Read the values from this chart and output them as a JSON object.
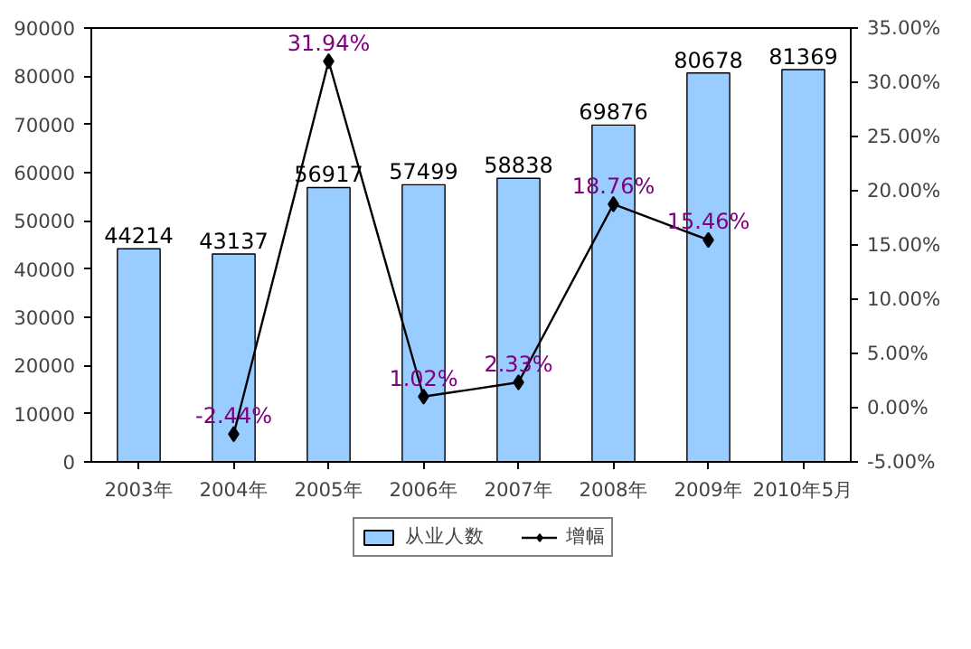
{
  "chart_data": {
    "type": "bar",
    "categories": [
      "2003年",
      "2004年",
      "2005年",
      "2006年",
      "2007年",
      "2008年",
      "2009年",
      "2010年5月"
    ],
    "series": [
      {
        "name": "从业人数",
        "color": "#99ccff",
        "values": [
          44214,
          43137,
          56917,
          57499,
          58838,
          69876,
          80678,
          81369
        ],
        "value_labels": [
          "44214",
          "43137",
          "56917",
          "57499",
          "58838",
          "69876",
          "80678",
          "81369"
        ]
      },
      {
        "name": "增幅",
        "type": "line",
        "axis": "y2",
        "color": "#000000",
        "marker": "diamond",
        "values": [
          null,
          -2.44,
          31.94,
          1.02,
          2.33,
          18.76,
          15.46,
          null
        ],
        "value_labels": [
          null,
          "-2.44%",
          "31.94%",
          "1.02%",
          "2.33%",
          "18.76%",
          "15.46%",
          null
        ]
      }
    ],
    "ylim": [
      0,
      90000
    ],
    "yticks": [
      0,
      10000,
      20000,
      30000,
      40000,
      50000,
      60000,
      70000,
      80000,
      90000
    ],
    "y2lim": [
      -5,
      35
    ],
    "y2ticks": [
      {
        "value": -5,
        "label": "-5.00%"
      },
      {
        "value": 0,
        "label": "0.00%"
      },
      {
        "value": 5,
        "label": "5.00%"
      },
      {
        "value": 10,
        "label": "10.00%"
      },
      {
        "value": 15,
        "label": "15.00%"
      },
      {
        "value": 20,
        "label": "20.00%"
      },
      {
        "value": 25,
        "label": "25.00%"
      },
      {
        "value": 30,
        "label": "30.00%"
      },
      {
        "value": 35,
        "label": "35.00%"
      }
    ],
    "grid": false,
    "legend": "bottom"
  }
}
